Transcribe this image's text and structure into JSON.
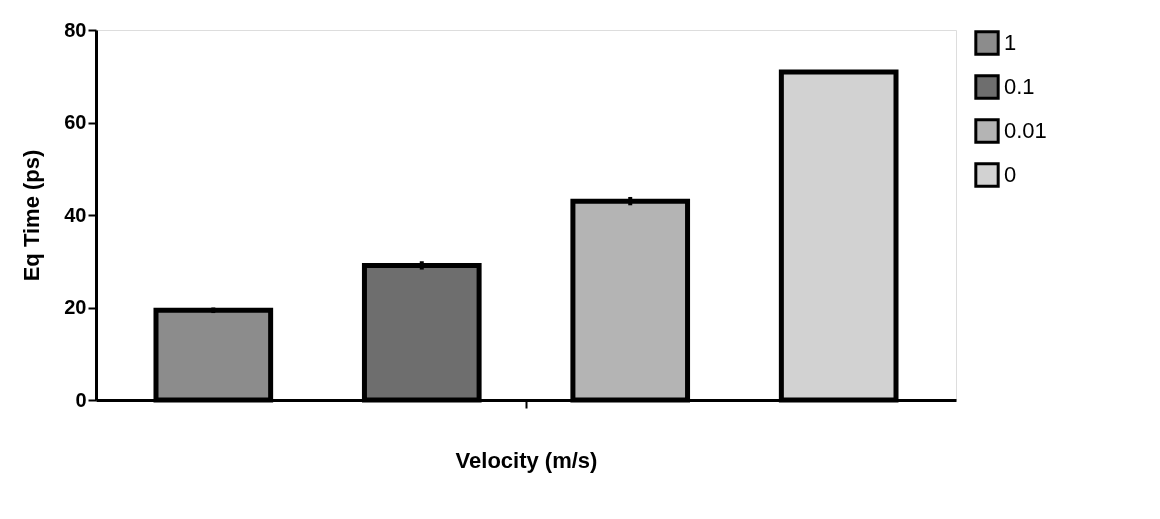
{
  "chart_data": {
    "type": "bar",
    "xlabel": "Velocity (m/s)",
    "ylabel": "Eq Time (ps)",
    "categories": [
      null
    ],
    "series": [
      {
        "name": "1",
        "color": "#8c8c8c",
        "values": [
          19.4
        ],
        "errors": [
          0.6
        ]
      },
      {
        "name": "0.1",
        "color": "#6e6e6e",
        "values": [
          29.1
        ],
        "errors": [
          0.9
        ]
      },
      {
        "name": "0.01",
        "color": "#b4b4b4",
        "values": [
          43.0
        ],
        "errors": [
          0.9
        ]
      },
      {
        "name": "0",
        "color": "#d2d2d2",
        "values": [
          70.9
        ],
        "errors": [
          0.4
        ]
      }
    ],
    "ylim": [
      0,
      80
    ],
    "yticks": [
      0,
      20,
      40,
      60,
      80
    ],
    "grid": false,
    "legend": "top right"
  }
}
